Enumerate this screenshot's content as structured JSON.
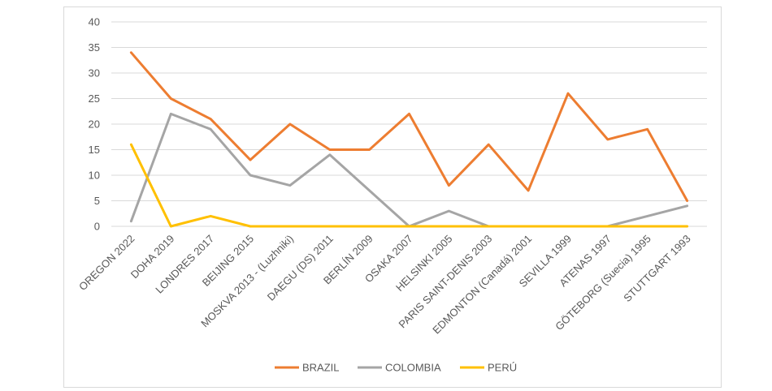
{
  "chart_data": {
    "type": "line",
    "title": "",
    "xlabel": "",
    "ylabel": "",
    "ylim": [
      0,
      40
    ],
    "yticks": [
      0,
      5,
      10,
      15,
      20,
      25,
      30,
      35,
      40
    ],
    "grid": true,
    "legend_position": "bottom",
    "categories": [
      "OREGON 2022",
      "DOHA 2019",
      "LONDRES 2017",
      "BEIJING 2015",
      "MOSKVA 2013 - (Luzhniki)",
      "DAEGU (DS) 2011",
      "BERLÍN 2009",
      "OSAKA 2007",
      "HELSINKI 2005",
      "PARIS SAINT-DENIS 2003",
      "EDMONTON (Canadá) 2001",
      "SEVILLA 1999",
      "ATENAS 1997",
      "GÖTEBORG (Suecia) 1995",
      "STUTTGART 1993"
    ],
    "series": [
      {
        "name": "BRAZIL",
        "color": "#ED7D31",
        "values": [
          34,
          25,
          21,
          13,
          20,
          15,
          15,
          22,
          8,
          16,
          7,
          26,
          17,
          19,
          5
        ]
      },
      {
        "name": "COLOMBIA",
        "color": "#A5A5A5",
        "values": [
          1,
          22,
          19,
          10,
          8,
          14,
          7,
          0,
          3,
          0,
          0,
          0,
          0,
          2,
          4
        ]
      },
      {
        "name": "PERÚ",
        "color": "#FFC000",
        "values": [
          16,
          0,
          2,
          0,
          0,
          0,
          0,
          0,
          0,
          0,
          0,
          0,
          0,
          0,
          0
        ]
      }
    ]
  }
}
